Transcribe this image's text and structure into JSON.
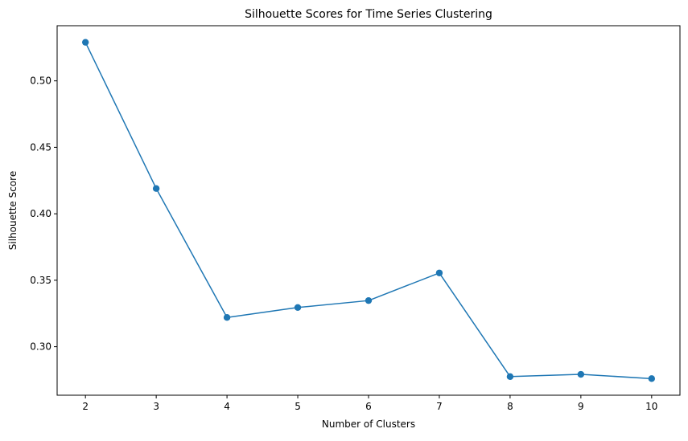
{
  "chart_data": {
    "type": "line",
    "title": "Silhouette Scores for Time Series Clustering",
    "xlabel": "Number of Clusters",
    "ylabel": "Silhouette Score",
    "x": [
      2,
      3,
      4,
      5,
      6,
      7,
      8,
      9,
      10
    ],
    "series": [
      {
        "values": [
          0.529,
          0.419,
          0.322,
          0.3295,
          0.3347,
          0.3555,
          0.2775,
          0.2792,
          0.276
        ],
        "color": "#1f77b4",
        "marker": "circle"
      }
    ],
    "xlim": [
      1.6,
      10.4
    ],
    "ylim": [
      0.2635,
      0.5415
    ],
    "xticks": [
      2,
      3,
      4,
      5,
      6,
      7,
      8,
      9,
      10
    ],
    "yticks": [
      0.3,
      0.35,
      0.4,
      0.45,
      0.5
    ],
    "ytick_labels": [
      "0.30",
      "0.35",
      "0.40",
      "0.45",
      "0.50"
    ],
    "grid": false,
    "legend": "none"
  }
}
